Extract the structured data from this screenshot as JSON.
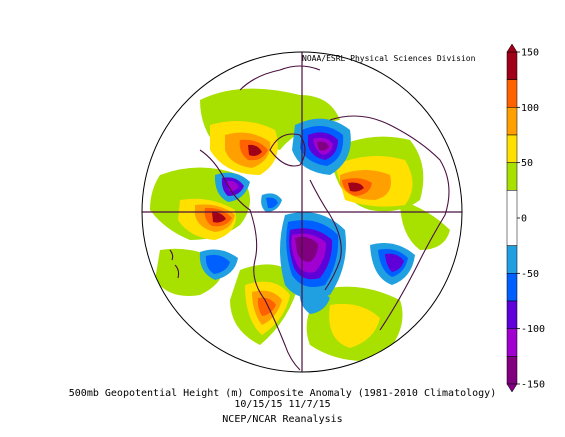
{
  "credit": "NOAA/ESRL Physical Sciences Division",
  "caption": {
    "line1": "500mb Geopotential Height (m) Composite Anomaly (1981-2010 Climatology)",
    "line2": "10/15/15 11/7/15",
    "line3": "NCEP/NCAR Reanalysis"
  },
  "colorbar": {
    "levels": [
      {
        "label": "150",
        "value": 150
      },
      {
        "label": "100",
        "value": 100
      },
      {
        "label": "50",
        "value": 50
      },
      {
        "label": "0",
        "value": 0
      },
      {
        "label": "-50",
        "value": -50
      },
      {
        "label": "-100",
        "value": -100
      },
      {
        "label": "-150",
        "value": -150
      }
    ],
    "bands": [
      {
        "from": 150,
        "to": 125,
        "color": "#a00018"
      },
      {
        "from": 125,
        "to": 100,
        "color": "#ff6000"
      },
      {
        "from": 100,
        "to": 75,
        "color": "#ffa000"
      },
      {
        "from": 75,
        "to": 50,
        "color": "#ffe000"
      },
      {
        "from": 50,
        "to": 25,
        "color": "#a8e000"
      },
      {
        "from": 25,
        "to": -25,
        "color": "#ffffff"
      },
      {
        "from": -25,
        "to": -50,
        "color": "#20a0e0"
      },
      {
        "from": -50,
        "to": -75,
        "color": "#0060ff"
      },
      {
        "from": -75,
        "to": -100,
        "color": "#6000d8"
      },
      {
        "from": -100,
        "to": -125,
        "color": "#a000d0"
      },
      {
        "from": -125,
        "to": -150,
        "color": "#800080"
      }
    ]
  },
  "colors": {
    "coast": "#4a1040",
    "land_green": "#a8e000"
  }
}
